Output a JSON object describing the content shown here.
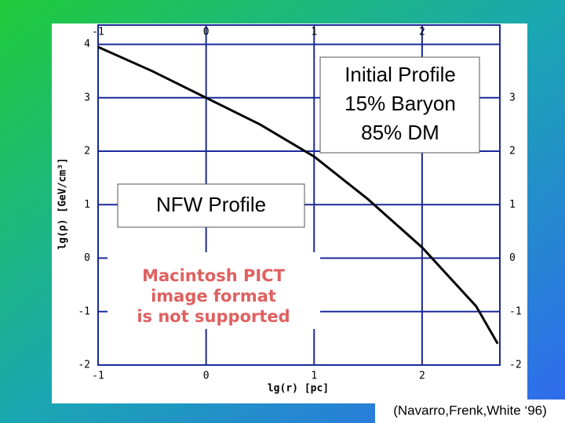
{
  "chart_data": {
    "type": "line",
    "x_label": "lg(r)  [pc]",
    "y_label": "lg(ρ)  [GeV/cm³]",
    "x": [
      -1,
      -0.5,
      0,
      0.5,
      1,
      1.5,
      2,
      2.5,
      2.7
    ],
    "series": [
      {
        "color": "#000000",
        "values": [
          3.95,
          3.5,
          3.0,
          2.5,
          1.9,
          1.1,
          0.2,
          -0.9,
          -1.6
        ]
      }
    ],
    "xlim": [
      -1,
      2.72
    ],
    "ylim": [
      -2,
      4.36
    ],
    "xticks": [
      -1,
      0,
      1,
      2
    ],
    "yticks": [
      -2,
      -1,
      0,
      1,
      2,
      3,
      4
    ],
    "y2lim": [
      -2,
      4.36
    ],
    "y2ticks": [
      -2,
      -1,
      0,
      1,
      2,
      3
    ],
    "grid": true,
    "legend_box": [
      "Initial Profile",
      "15% Baryon",
      "85% DM"
    ],
    "curve_label": "NFW  Profile",
    "notice": [
      "Macintosh PICT",
      "image format",
      "is not supported"
    ],
    "citation": "(Navarro,Frenk,White ‘96)"
  }
}
